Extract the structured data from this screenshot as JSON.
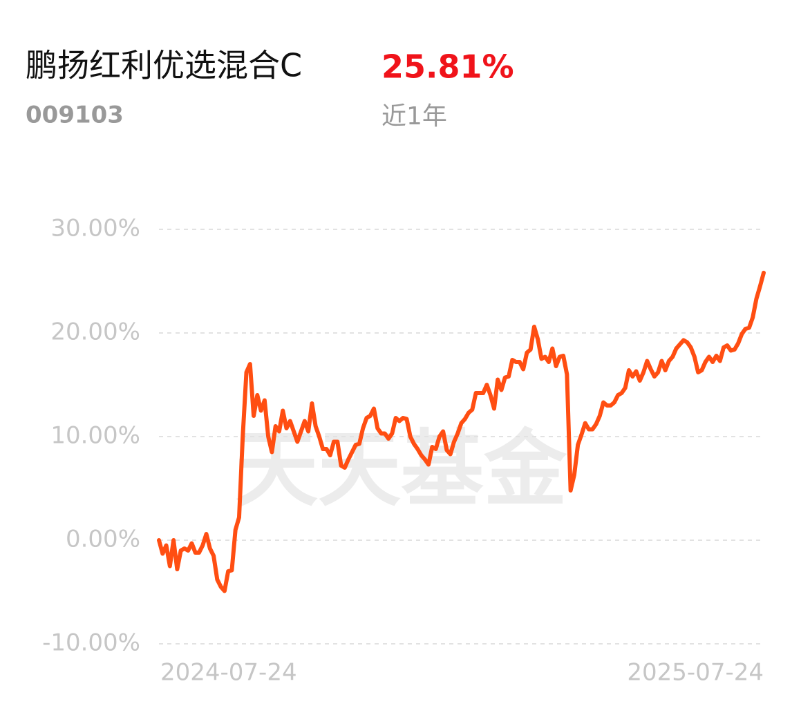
{
  "header": {
    "title": "鹏扬红利优选混合C",
    "code": "009103",
    "return": "25.81%",
    "period": "近1年"
  },
  "chart_data": {
    "type": "line",
    "watermark": "天天基金",
    "categories": [
      "2024-07-24",
      null,
      null,
      null,
      null,
      null,
      null,
      null,
      null,
      null,
      null,
      null,
      null,
      null,
      null,
      null,
      null,
      null,
      null,
      null,
      null,
      null,
      null,
      null,
      null,
      null,
      null,
      null,
      null,
      null,
      null,
      null,
      null,
      null,
      null,
      null,
      null,
      null,
      null,
      null,
      null,
      null,
      null,
      null,
      null,
      null,
      null,
      null,
      null,
      null,
      null,
      null,
      null,
      null,
      null,
      null,
      null,
      null,
      null,
      null,
      null,
      null,
      null,
      null,
      null,
      null,
      null,
      null,
      null,
      null,
      null,
      null,
      null,
      null,
      null,
      null,
      null,
      null,
      null,
      null,
      null,
      null,
      null,
      null,
      null,
      null,
      null,
      null,
      null,
      null,
      null,
      null,
      null,
      null,
      null,
      null,
      null,
      null,
      null,
      null,
      null,
      null,
      null,
      null,
      null,
      null,
      null,
      null,
      null,
      null,
      null,
      null,
      null,
      null,
      null,
      null,
      null,
      null,
      null,
      null,
      null,
      null,
      null,
      null,
      null,
      null,
      null,
      null,
      null,
      null,
      null,
      null,
      null,
      null,
      null,
      null,
      null,
      null,
      null,
      null,
      null,
      null,
      null,
      null,
      null,
      null,
      null,
      null,
      null,
      null,
      null,
      null,
      null,
      null,
      null,
      null,
      null,
      null,
      null,
      null,
      null,
      null,
      null,
      null,
      null,
      null,
      "2025-07-24"
    ],
    "series": [
      {
        "color": "#ff4e12",
        "values": [
          0,
          -1.3,
          -0.5,
          -2.5,
          0,
          -2.8,
          -1,
          -0.8,
          -1,
          -0.3,
          -1.2,
          -1.2,
          -0.5,
          0.6,
          -0.8,
          -1.5,
          -3.8,
          -4.5,
          -4.9,
          -3,
          -2.9,
          1,
          2.2,
          10,
          16.2,
          17,
          12,
          14,
          12.5,
          13.5,
          10,
          8.5,
          11,
          10.5,
          12.5,
          10.8,
          11.5,
          10.5,
          9.5,
          10.5,
          11.5,
          10.5,
          13.2,
          11,
          10,
          8.8,
          8.8,
          8.2,
          9.5,
          9.5,
          7.2,
          7,
          7.8,
          8.5,
          9.2,
          9.3,
          10.8,
          11.8,
          12,
          12.7,
          10.8,
          10.3,
          10.3,
          9.8,
          10.3,
          11.8,
          11.5,
          11.8,
          11.7,
          10,
          9.3,
          8.8,
          8.2,
          7.8,
          7.3,
          9,
          8.8,
          10,
          10.5,
          8.7,
          8.3,
          9.5,
          10.3,
          11.3,
          11.7,
          12.3,
          12.6,
          14.2,
          14.2,
          14.2,
          15,
          14,
          12.7,
          15.5,
          14.5,
          15.7,
          15.8,
          17.4,
          17.2,
          17.2,
          16.5,
          18.1,
          18.4,
          20.6,
          19.4,
          17.5,
          17.7,
          17.2,
          18.5,
          16.8,
          17.7,
          17.8,
          16,
          4.8,
          6.3,
          9.2,
          10.2,
          11.3,
          10.7,
          10.7,
          11.2,
          12,
          13.3,
          13,
          13,
          13.3,
          14,
          14.2,
          14.7,
          16.4,
          15.8,
          16.3,
          15.4,
          16.2,
          17.3,
          16.5,
          15.8,
          16.2,
          17.3,
          16.4,
          17.3,
          17.7,
          18.5,
          18.9,
          19.3,
          19.1,
          18.6,
          17.7,
          16.2,
          16.4,
          17.2,
          17.7,
          17.2,
          17.8,
          17.3,
          18.6,
          18.8,
          18.3,
          18.4,
          19,
          19.9,
          20.4,
          20.5,
          21.5,
          23.3,
          24.5,
          25.81
        ]
      }
    ],
    "ylim": [
      -10,
      30
    ],
    "yticks": [
      {
        "value": 30,
        "label": "30.00%"
      },
      {
        "value": 20,
        "label": "20.00%"
      },
      {
        "value": 10,
        "label": "10.00%"
      },
      {
        "value": 0,
        "label": "0.00%"
      },
      {
        "value": -10,
        "label": "-10.00%"
      }
    ],
    "grid": true
  }
}
